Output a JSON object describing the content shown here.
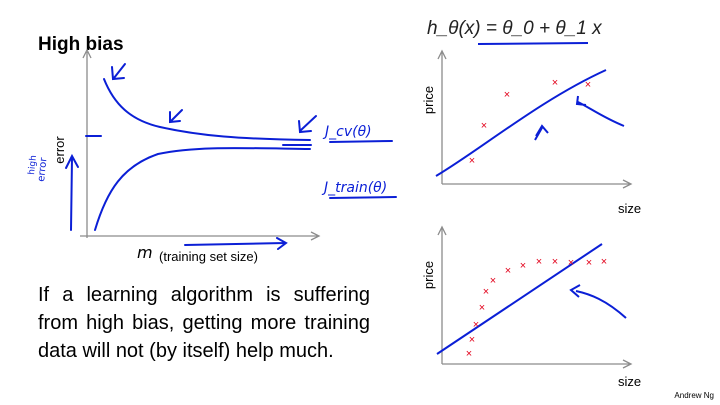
{
  "slide": {
    "title": "High bias",
    "paragraph": "If a learning algorithm is suffering from high bias, getting more training data will not (by itself) help much.",
    "credit": "Andrew Ng"
  },
  "left_plot": {
    "y_label": "error",
    "x_var": "m",
    "x_label": "(training set size)",
    "hw_high_error_1": "high",
    "hw_high_error_2": "error",
    "hw_jcv": "J_cv(θ)",
    "hw_jtrain": "J_train(θ)"
  },
  "right_top": {
    "formula": "h_θ(x) = θ_0 + θ_1 x",
    "y_label": "price",
    "x_label": "size"
  },
  "right_bottom": {
    "y_label": "price",
    "x_label": "size"
  },
  "colors": {
    "ink": "#0b1fd6",
    "points": "#e2001a",
    "axes": "#8c8c8c"
  },
  "chart_data": [
    {
      "type": "line",
      "title": "",
      "xlabel": "m (training set size)",
      "ylabel": "error",
      "series": [
        {
          "name": "J_cv(θ)",
          "shape": "decreasing, flattens to plateau"
        },
        {
          "name": "J_train(θ)",
          "shape": "increasing, flattens to same plateau"
        }
      ],
      "note": "both curves converge to a high error plateau"
    },
    {
      "type": "scatter",
      "xlabel": "size",
      "ylabel": "price",
      "points": [
        [
          1,
          1
        ],
        [
          2,
          3.2
        ],
        [
          4,
          4.4
        ],
        [
          6,
          4.5
        ],
        [
          7,
          4.3
        ]
      ],
      "fit": "straight line h(x)=θ0+θ1x"
    },
    {
      "type": "scatter",
      "xlabel": "size",
      "ylabel": "price",
      "points": [
        [
          0.5,
          0.3
        ],
        [
          0.6,
          0.9
        ],
        [
          0.7,
          1.5
        ],
        [
          0.8,
          2.1
        ],
        [
          1,
          2.6
        ],
        [
          1.2,
          3.0
        ],
        [
          1.6,
          3.3
        ],
        [
          2.2,
          3.4
        ],
        [
          3,
          3.5
        ],
        [
          4,
          3.5
        ],
        [
          5,
          3.5
        ],
        [
          6,
          3.5
        ],
        [
          7,
          3.5
        ]
      ],
      "fit": "straight line h(x)=θ0+θ1x"
    }
  ]
}
